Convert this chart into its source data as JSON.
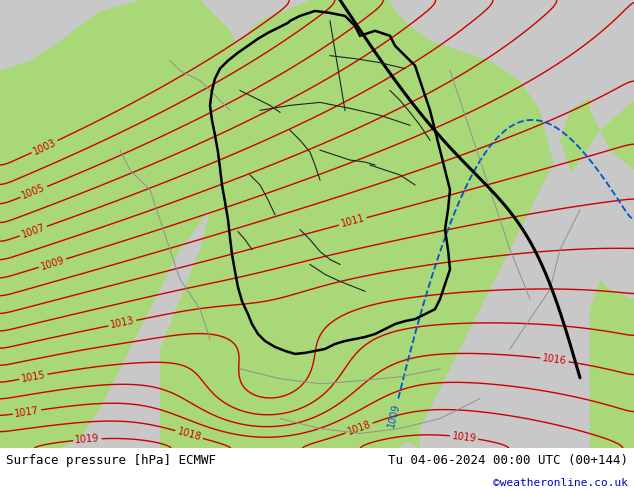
{
  "title_left": "Surface pressure [hPa] ECMWF",
  "title_right": "Tu 04-06-2024 00:00 UTC (00+144)",
  "credit": "©weatheronline.co.uk",
  "credit_color": "#0000cc",
  "bg_gray": "#c8c8c8",
  "green_land": "#a8d878",
  "green_land2": "#b8e090",
  "red_color": "#cc0000",
  "blue_color": "#0055cc",
  "black_color": "#000000",
  "gray_border": "#808080",
  "label_fontsize": 9,
  "title_fontsize": 9,
  "figsize": [
    6.34,
    4.9
  ],
  "dpi": 100
}
